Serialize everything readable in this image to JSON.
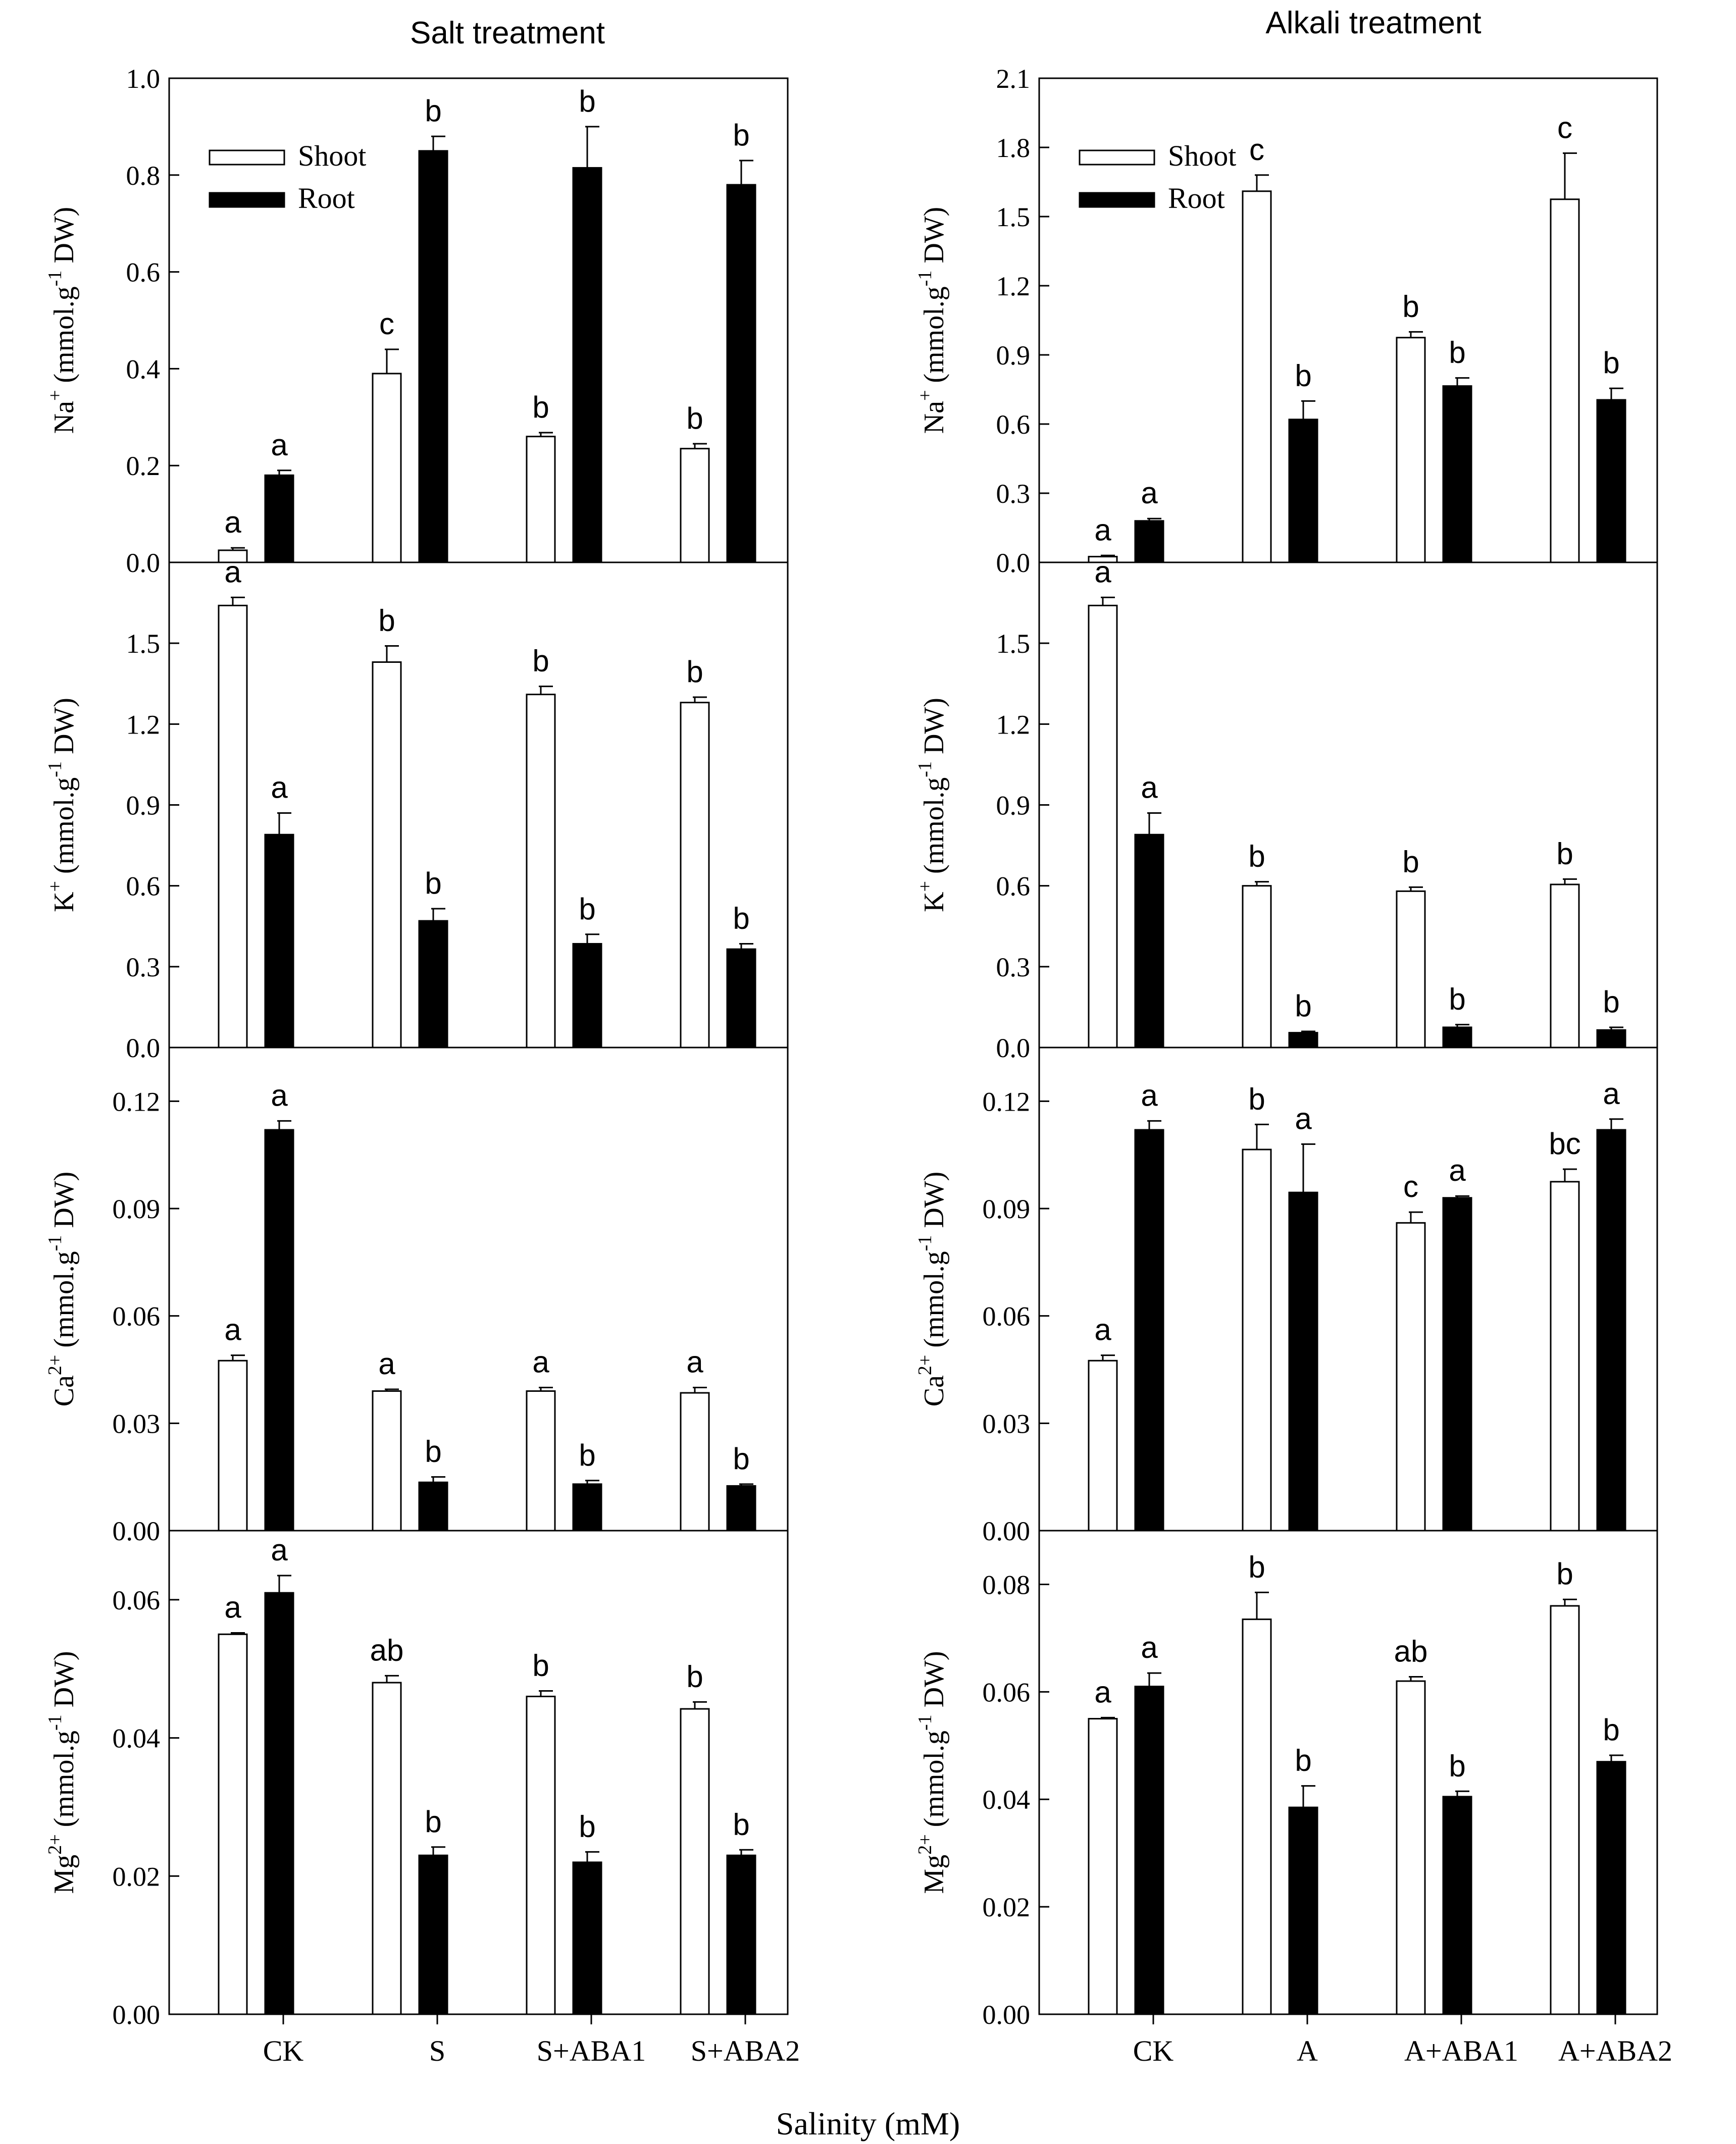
{
  "figure": {
    "column_titles": [
      "Salt treatment",
      "Alkali treatment"
    ],
    "xlabel": "Salinity (mM)",
    "legend": {
      "shoot": "Shoot",
      "root": "Root"
    },
    "colors": {
      "shoot": "#ffffff",
      "root": "#000000",
      "axis": "#000000"
    }
  },
  "chart_data": [
    {
      "id": "salt-na",
      "type": "bar",
      "column": 0,
      "row": 0,
      "show_legend": true,
      "ylabel": {
        "ion": "Na",
        "charge": "+"
      },
      "categories": [
        "CK",
        "S",
        "S+ABA1",
        "S+ABA2"
      ],
      "ylim": [
        0,
        1.0
      ],
      "yticks": [
        [
          "0.0",
          0
        ],
        [
          "0.2",
          0.2
        ],
        [
          "0.4",
          0.4
        ],
        [
          "0.6",
          0.6
        ],
        [
          "0.8",
          0.8
        ],
        [
          "1.0",
          1.0
        ]
      ],
      "series": [
        {
          "name": "Shoot",
          "values": [
            0.025,
            0.39,
            0.26,
            0.235
          ],
          "errors": [
            0.005,
            0.05,
            0.008,
            0.01
          ],
          "letters": [
            "a",
            "c",
            "b",
            "b"
          ]
        },
        {
          "name": "Root",
          "values": [
            0.18,
            0.85,
            0.815,
            0.78
          ],
          "errors": [
            0.01,
            0.03,
            0.085,
            0.05
          ],
          "letters": [
            "a",
            "b",
            "b",
            "b"
          ]
        }
      ]
    },
    {
      "id": "salt-k",
      "type": "bar",
      "column": 0,
      "row": 1,
      "ylabel": {
        "ion": "K",
        "charge": "+"
      },
      "categories": [
        "CK",
        "S",
        "S+ABA1",
        "S+ABA2"
      ],
      "ylim": [
        0,
        1.8
      ],
      "yticks": [
        [
          "0.0",
          0
        ],
        [
          "0.3",
          0.3
        ],
        [
          "0.6",
          0.6
        ],
        [
          "0.9",
          0.9
        ],
        [
          "1.2",
          1.2
        ],
        [
          "1.5",
          1.5
        ]
      ],
      "series": [
        {
          "name": "Shoot",
          "values": [
            1.64,
            1.43,
            1.31,
            1.28
          ],
          "errors": [
            0.03,
            0.06,
            0.03,
            0.02
          ],
          "letters": [
            "a",
            "b",
            "b",
            "b"
          ]
        },
        {
          "name": "Root",
          "values": [
            0.79,
            0.47,
            0.385,
            0.365
          ],
          "errors": [
            0.08,
            0.045,
            0.035,
            0.02
          ],
          "letters": [
            "a",
            "b",
            "b",
            "b"
          ]
        }
      ]
    },
    {
      "id": "salt-ca",
      "type": "bar",
      "column": 0,
      "row": 2,
      "ylabel": {
        "ion": "Ca",
        "charge": "2+"
      },
      "categories": [
        "CK",
        "S",
        "S+ABA1",
        "S+ABA2"
      ],
      "ylim": [
        0,
        0.135
      ],
      "yticks": [
        [
          "0.00",
          0
        ],
        [
          "0.03",
          0.03
        ],
        [
          "0.06",
          0.06
        ],
        [
          "0.09",
          0.09
        ],
        [
          "0.12",
          0.12
        ]
      ],
      "series": [
        {
          "name": "Shoot",
          "values": [
            0.0475,
            0.039,
            0.039,
            0.0385
          ],
          "errors": [
            0.0015,
            0.0005,
            0.001,
            0.0015
          ],
          "letters": [
            "a",
            "a",
            "a",
            "a"
          ]
        },
        {
          "name": "Root",
          "values": [
            0.112,
            0.0135,
            0.013,
            0.0125
          ],
          "errors": [
            0.0025,
            0.0015,
            0.001,
            0.0005
          ],
          "letters": [
            "a",
            "b",
            "b",
            "b"
          ]
        }
      ]
    },
    {
      "id": "salt-mg",
      "type": "bar",
      "column": 0,
      "row": 3,
      "ylabel": {
        "ion": "Mg",
        "charge": "2+"
      },
      "categories": [
        "CK",
        "S",
        "S+ABA1",
        "S+ABA2"
      ],
      "ylim": [
        0,
        0.07
      ],
      "yticks": [
        [
          "0.00",
          0
        ],
        [
          "0.02",
          0.02
        ],
        [
          "0.04",
          0.04
        ],
        [
          "0.06",
          0.06
        ]
      ],
      "series": [
        {
          "name": "Shoot",
          "values": [
            0.055,
            0.048,
            0.046,
            0.0442
          ],
          "errors": [
            0.0002,
            0.001,
            0.0008,
            0.001
          ],
          "letters": [
            "a",
            "ab",
            "b",
            "b"
          ]
        },
        {
          "name": "Root",
          "values": [
            0.061,
            0.023,
            0.022,
            0.023
          ],
          "errors": [
            0.0025,
            0.0012,
            0.0015,
            0.0008
          ],
          "letters": [
            "a",
            "b",
            "b",
            "b"
          ]
        }
      ]
    },
    {
      "id": "alkali-na",
      "type": "bar",
      "column": 1,
      "row": 0,
      "show_legend": true,
      "ylabel": {
        "ion": "Na",
        "charge": "+"
      },
      "categories": [
        "CK",
        "A",
        "A+ABA1",
        "A+ABA2"
      ],
      "ylim": [
        0,
        2.1
      ],
      "yticks": [
        [
          "0.0",
          0
        ],
        [
          "0.3",
          0.3
        ],
        [
          "0.6",
          0.6
        ],
        [
          "0.9",
          0.9
        ],
        [
          "1.2",
          1.2
        ],
        [
          "1.5",
          1.5
        ],
        [
          "1.8",
          1.8
        ],
        [
          "2.1",
          2.1
        ]
      ],
      "series": [
        {
          "name": "Shoot",
          "values": [
            0.025,
            1.61,
            0.975,
            1.575
          ],
          "errors": [
            0.005,
            0.07,
            0.025,
            0.2
          ],
          "letters": [
            "a",
            "c",
            "b",
            "c"
          ]
        },
        {
          "name": "Root",
          "values": [
            0.18,
            0.62,
            0.765,
            0.705
          ],
          "errors": [
            0.01,
            0.08,
            0.035,
            0.05
          ],
          "letters": [
            "a",
            "b",
            "b",
            "b"
          ]
        }
      ]
    },
    {
      "id": "alkali-k",
      "type": "bar",
      "column": 1,
      "row": 1,
      "ylabel": {
        "ion": "K",
        "charge": "+"
      },
      "categories": [
        "CK",
        "A",
        "A+ABA1",
        "A+ABA2"
      ],
      "ylim": [
        0,
        1.8
      ],
      "yticks": [
        [
          "0.0",
          0
        ],
        [
          "0.3",
          0.3
        ],
        [
          "0.6",
          0.6
        ],
        [
          "0.9",
          0.9
        ],
        [
          "1.2",
          1.2
        ],
        [
          "1.5",
          1.5
        ]
      ],
      "series": [
        {
          "name": "Shoot",
          "values": [
            1.64,
            0.6,
            0.58,
            0.605
          ],
          "errors": [
            0.03,
            0.015,
            0.015,
            0.02
          ],
          "letters": [
            "a",
            "b",
            "b",
            "b"
          ]
        },
        {
          "name": "Root",
          "values": [
            0.79,
            0.055,
            0.075,
            0.065
          ],
          "errors": [
            0.08,
            0.005,
            0.01,
            0.01
          ],
          "letters": [
            "a",
            "b",
            "b",
            "b"
          ]
        }
      ]
    },
    {
      "id": "alkali-ca",
      "type": "bar",
      "column": 1,
      "row": 2,
      "ylabel": {
        "ion": "Ca",
        "charge": "2+"
      },
      "categories": [
        "CK",
        "A",
        "A+ABA1",
        "A+ABA2"
      ],
      "ylim": [
        0,
        0.135
      ],
      "yticks": [
        [
          "0.00",
          0
        ],
        [
          "0.03",
          0.03
        ],
        [
          "0.06",
          0.06
        ],
        [
          "0.09",
          0.09
        ],
        [
          "0.12",
          0.12
        ]
      ],
      "series": [
        {
          "name": "Shoot",
          "values": [
            0.0475,
            0.1065,
            0.086,
            0.0975
          ],
          "errors": [
            0.0015,
            0.007,
            0.003,
            0.0035
          ],
          "letters": [
            "a",
            "b",
            "c",
            "bc"
          ]
        },
        {
          "name": "Root",
          "values": [
            0.112,
            0.0945,
            0.093,
            0.112
          ],
          "errors": [
            0.0025,
            0.0135,
            0.0005,
            0.003
          ],
          "letters": [
            "a",
            "a",
            "a",
            "a"
          ]
        }
      ]
    },
    {
      "id": "alkali-mg",
      "type": "bar",
      "column": 1,
      "row": 3,
      "ylabel": {
        "ion": "Mg",
        "charge": "2+"
      },
      "categories": [
        "CK",
        "A",
        "A+ABA1",
        "A+ABA2"
      ],
      "ylim": [
        0,
        0.09
      ],
      "yticks": [
        [
          "0.00",
          0
        ],
        [
          "0.02",
          0.02
        ],
        [
          "0.04",
          0.04
        ],
        [
          "0.06",
          0.06
        ],
        [
          "0.08",
          0.08
        ]
      ],
      "series": [
        {
          "name": "Shoot",
          "values": [
            0.055,
            0.0735,
            0.062,
            0.076
          ],
          "errors": [
            0.0002,
            0.005,
            0.0008,
            0.0012
          ],
          "letters": [
            "a",
            "b",
            "ab",
            "b"
          ]
        },
        {
          "name": "Root",
          "values": [
            0.061,
            0.0385,
            0.0405,
            0.047
          ],
          "errors": [
            0.0025,
            0.004,
            0.001,
            0.0012
          ],
          "letters": [
            "a",
            "b",
            "b",
            "b"
          ]
        }
      ]
    }
  ]
}
